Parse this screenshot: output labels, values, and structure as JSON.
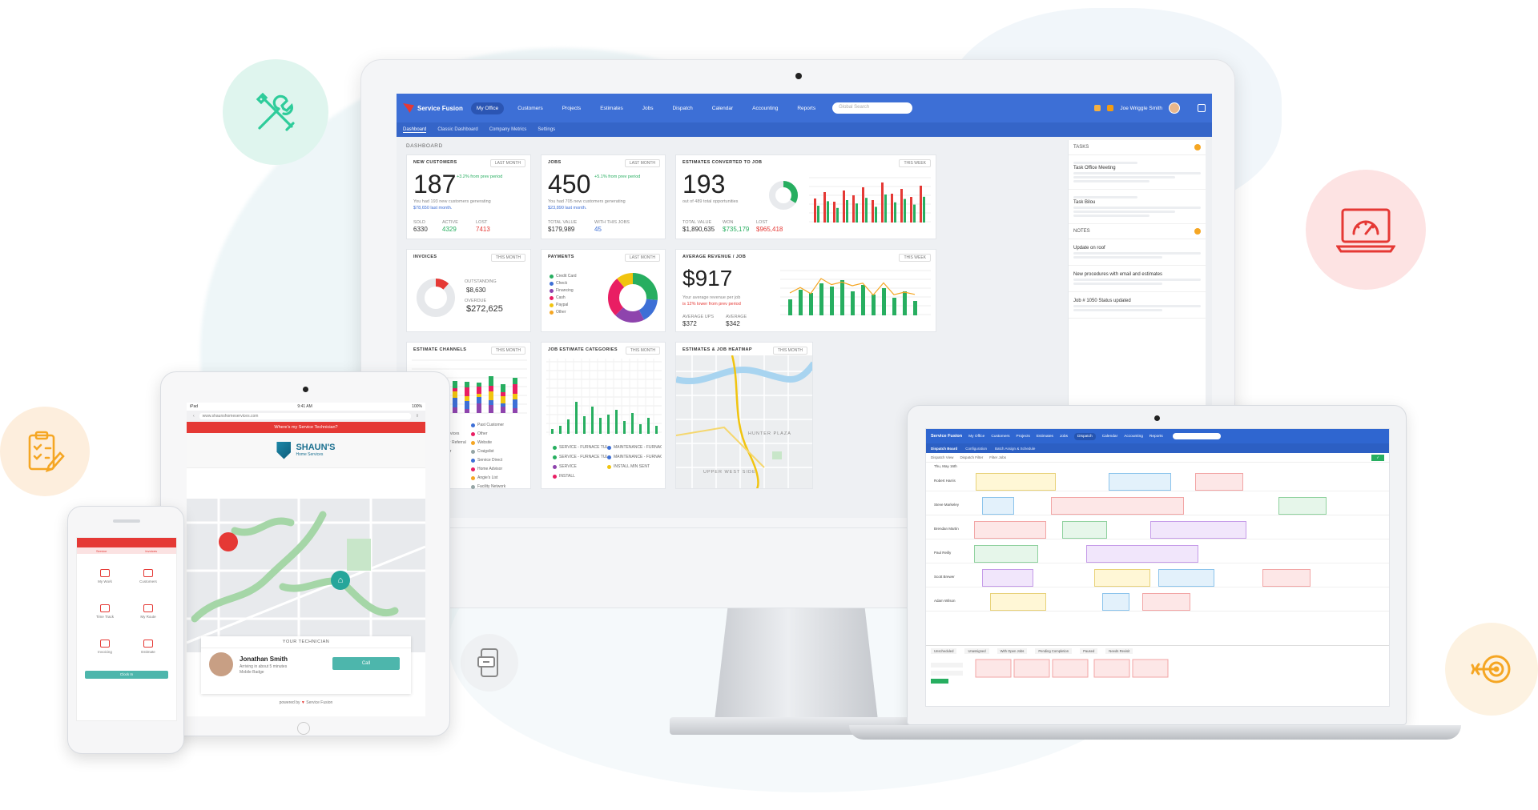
{
  "colors": {
    "brand_blue": "#3d6fd6",
    "accent_red": "#e53935",
    "green": "#27ae60",
    "teal": "#4db6ac",
    "orange": "#f5a623"
  },
  "monitor": {
    "brand": "Service Fusion",
    "nav": [
      "My Office",
      "Customers",
      "Projects",
      "Estimates",
      "Jobs",
      "Dispatch",
      "Calendar",
      "Accounting",
      "Reports"
    ],
    "search_placeholder": "Global Search",
    "user": "Joe Wriggle Smith",
    "subnav": [
      "Dashboard",
      "Classic Dashboard",
      "Company Metrics",
      "Settings"
    ],
    "page_label": "DASHBOARD",
    "cards": {
      "new_customers": {
        "title": "NEW CUSTOMERS",
        "pill": "LAST MONTH",
        "value": "187",
        "trend": "+3.2% from prev period",
        "note": "You had 193 new customers generating",
        "note2": "$78,650 last month.",
        "labels": [
          "SOLD",
          "ACTIVE",
          "LOST"
        ],
        "values": [
          "6330",
          "4329",
          "7413"
        ]
      },
      "jobs": {
        "title": "JOBS",
        "pill": "LAST MONTH",
        "value": "450",
        "trend": "+5.1% from prev period",
        "note": "You had 705 new customers generating",
        "note2": "$23,890 last month.",
        "labels": [
          "TOTAL VALUE",
          "WITH THIS JOBS"
        ],
        "values": [
          "$179,989",
          "45"
        ]
      },
      "estimates": {
        "title": "ESTIMATES CONVERTED TO JOB",
        "pill": "THIS WEEK",
        "value": "193",
        "note": "out of 489 total opportunities",
        "labels": [
          "TOTAL VALUE",
          "WON",
          "LOST"
        ],
        "values": [
          "$1,890,635",
          "$735,179",
          "$965,418"
        ]
      },
      "invoices": {
        "title": "INVOICES",
        "pill": "THIS MONTH",
        "legend": "OUTSTANDING",
        "outstanding": "$8,630",
        "total_label": "OVERDUE",
        "total": "$272,625"
      },
      "payments": {
        "title": "PAYMENTS",
        "pill": "LAST MONTH",
        "legend": [
          "Credit Card",
          "Check",
          "Financing",
          "Cash",
          "Paypal",
          "Other"
        ]
      },
      "avg_revenue": {
        "title": "AVERAGE REVENUE / JOB",
        "pill": "THIS WEEK",
        "value": "$917",
        "note": "Your average revenue per job",
        "note2": "is 12% lower from prev period",
        "labels": [
          "AVERAGE UPS",
          "AVERAGE"
        ],
        "values": [
          "$372",
          "$342"
        ]
      },
      "channels": {
        "title": "ESTIMATE CHANNELS",
        "pill": "THIS MONTH",
        "legend": [
          "Interest Search",
          "Past Customer",
          "Google Home Services",
          "Other",
          "Existing Customer Referral",
          "Website",
          "Current Contractor",
          "Craigslist",
          "Facebook",
          "Service Direct",
          "Yelp",
          "Home Advisor",
          "Email Campaign",
          "Angie's List",
          "Jessel",
          "Facility Network"
        ]
      },
      "job_categories": {
        "title": "JOB ESTIMATE CATEGORIES",
        "pill": "THIS MONTH",
        "legend": [
          "SERVICE - FURNACE TUL",
          "MAINTENANCE - FURNACE",
          "SERVICE - FURNACE TUL",
          "MAINTENANCE - FURNACE",
          "SERVICE",
          "INSTALL MIN SENT",
          "INSTALL"
        ]
      },
      "heatmap": {
        "title": "ESTIMATES & JOB HEATMAP",
        "pill": "THIS MONTH",
        "area_label": "HUNTER PLAZA",
        "area_label2": "UPPER WEST SIDE"
      }
    },
    "tasks": {
      "title": "TASKS",
      "items": [
        {
          "title": "Task Office Meeting"
        },
        {
          "title": "Task Bilou"
        }
      ],
      "notes_title": "NOTES",
      "notes": [
        {
          "title": "Update on roof"
        },
        {
          "title": "New procedures with email and estimates"
        },
        {
          "title": "Job # 1050 Status updated"
        }
      ]
    }
  },
  "tablet": {
    "status_left": "iPad",
    "status_time": "9:41 AM",
    "status_right": "100%",
    "url": "www.shaunshomeservices.com",
    "banner": "Where's my Service Technician?",
    "company_name": "SHAUN'S",
    "company_sub": "Home Services",
    "tech_header": "YOUR TECHNICIAN",
    "tech_name": "Jonathan Smith",
    "tech_sub": "Arriving in about 5 minutes",
    "tech_sub2": "Mobile Badge",
    "call_label": "Call",
    "powered_by": "powered by",
    "powered_brand": "Service Fusion"
  },
  "phone": {
    "tabs": [
      "Service",
      "Invoices"
    ],
    "tiles": [
      "My Work",
      "Customers",
      "Time Track",
      "My Route",
      "Invoicing",
      "Estimate"
    ],
    "button": "Clock In"
  },
  "laptop": {
    "brand": "Service Fusion",
    "nav": [
      "My Office",
      "Customers",
      "Projects",
      "Estimates",
      "Jobs",
      "Dispatch",
      "Calendar",
      "Accounting",
      "Reports"
    ],
    "subnav": [
      "Dispatch Board",
      "Configuration",
      "Batch Assign & Schedule"
    ],
    "tools": [
      "Dispatch View",
      "Dispatch Filter",
      "Filter Jobs"
    ],
    "date_label": "Thu, May 16th",
    "techs": [
      "Robert Harris",
      "Steve Markeley",
      "Brendan Martin",
      "Paul Reilly",
      "Scott Brewer",
      "Adam Wilson"
    ],
    "bottom_tabs": [
      "Unscheduled",
      "Unassigned",
      "With Open Jobs",
      "Pending Completion",
      "Paused",
      "Needs Revisit"
    ]
  }
}
